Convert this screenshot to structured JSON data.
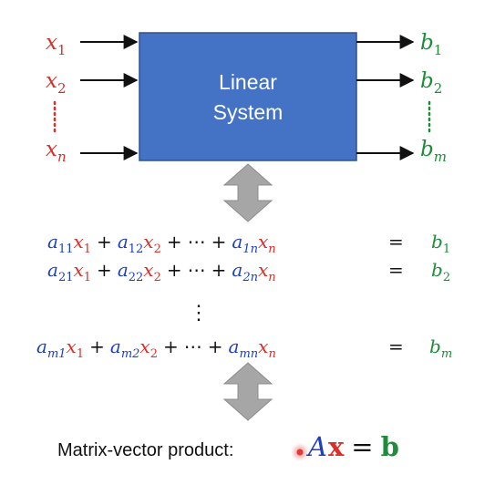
{
  "colors": {
    "box_fill": "#4472C4",
    "box_stroke": "#2F528F",
    "input_red": "#D9302A",
    "coef_blue": "#1F3FBF",
    "output_green": "#1E8C3A",
    "black": "#111111",
    "arrow_gray": "#A6A6A6",
    "pointer_red": "#E53935"
  },
  "system_box": {
    "line1": "Linear",
    "line2": "System"
  },
  "inputs": {
    "x1": {
      "base": "x",
      "sub": "1"
    },
    "x2": {
      "base": "x",
      "sub": "2"
    },
    "vdots": "⋮",
    "xn": {
      "base": "x",
      "sub": "n"
    }
  },
  "outputs": {
    "b1": {
      "base": "b",
      "sub": "1"
    },
    "b2": {
      "base": "b",
      "sub": "2"
    },
    "vdots": "⋮",
    "bm": {
      "base": "b",
      "sub": "m"
    }
  },
  "symbols": {
    "plus": "+",
    "cdots": "⋯",
    "equals": "=",
    "vdots": "⋮"
  },
  "equations": [
    {
      "c1": "a",
      "c1sub": "11",
      "x1": "x",
      "x1sub": "1",
      "c2": "a",
      "c2sub": "12",
      "x2": "x",
      "x2sub": "2",
      "cn": "a",
      "cnsub": "1n",
      "xn": "x",
      "xnsub": "n",
      "b": "b",
      "bsub": "1"
    },
    {
      "c1": "a",
      "c1sub": "21",
      "x1": "x",
      "x1sub": "1",
      "c2": "a",
      "c2sub": "22",
      "x2": "x",
      "x2sub": "2",
      "cn": "a",
      "cnsub": "2n",
      "xn": "x",
      "xnsub": "n",
      "b": "b",
      "bsub": "2"
    },
    {
      "c1": "a",
      "c1sub": "m1",
      "x1": "x",
      "x1sub": "1",
      "c2": "a",
      "c2sub": "m2",
      "x2": "x",
      "x2sub": "2",
      "cn": "a",
      "cnsub": "mn",
      "xn": "x",
      "xnsub": "n",
      "b": "b",
      "bsub": "m"
    }
  ],
  "matrix_vector": {
    "label": "Matrix-vector product:",
    "A": "A",
    "x": "x",
    "eq": "=",
    "b": "b"
  }
}
